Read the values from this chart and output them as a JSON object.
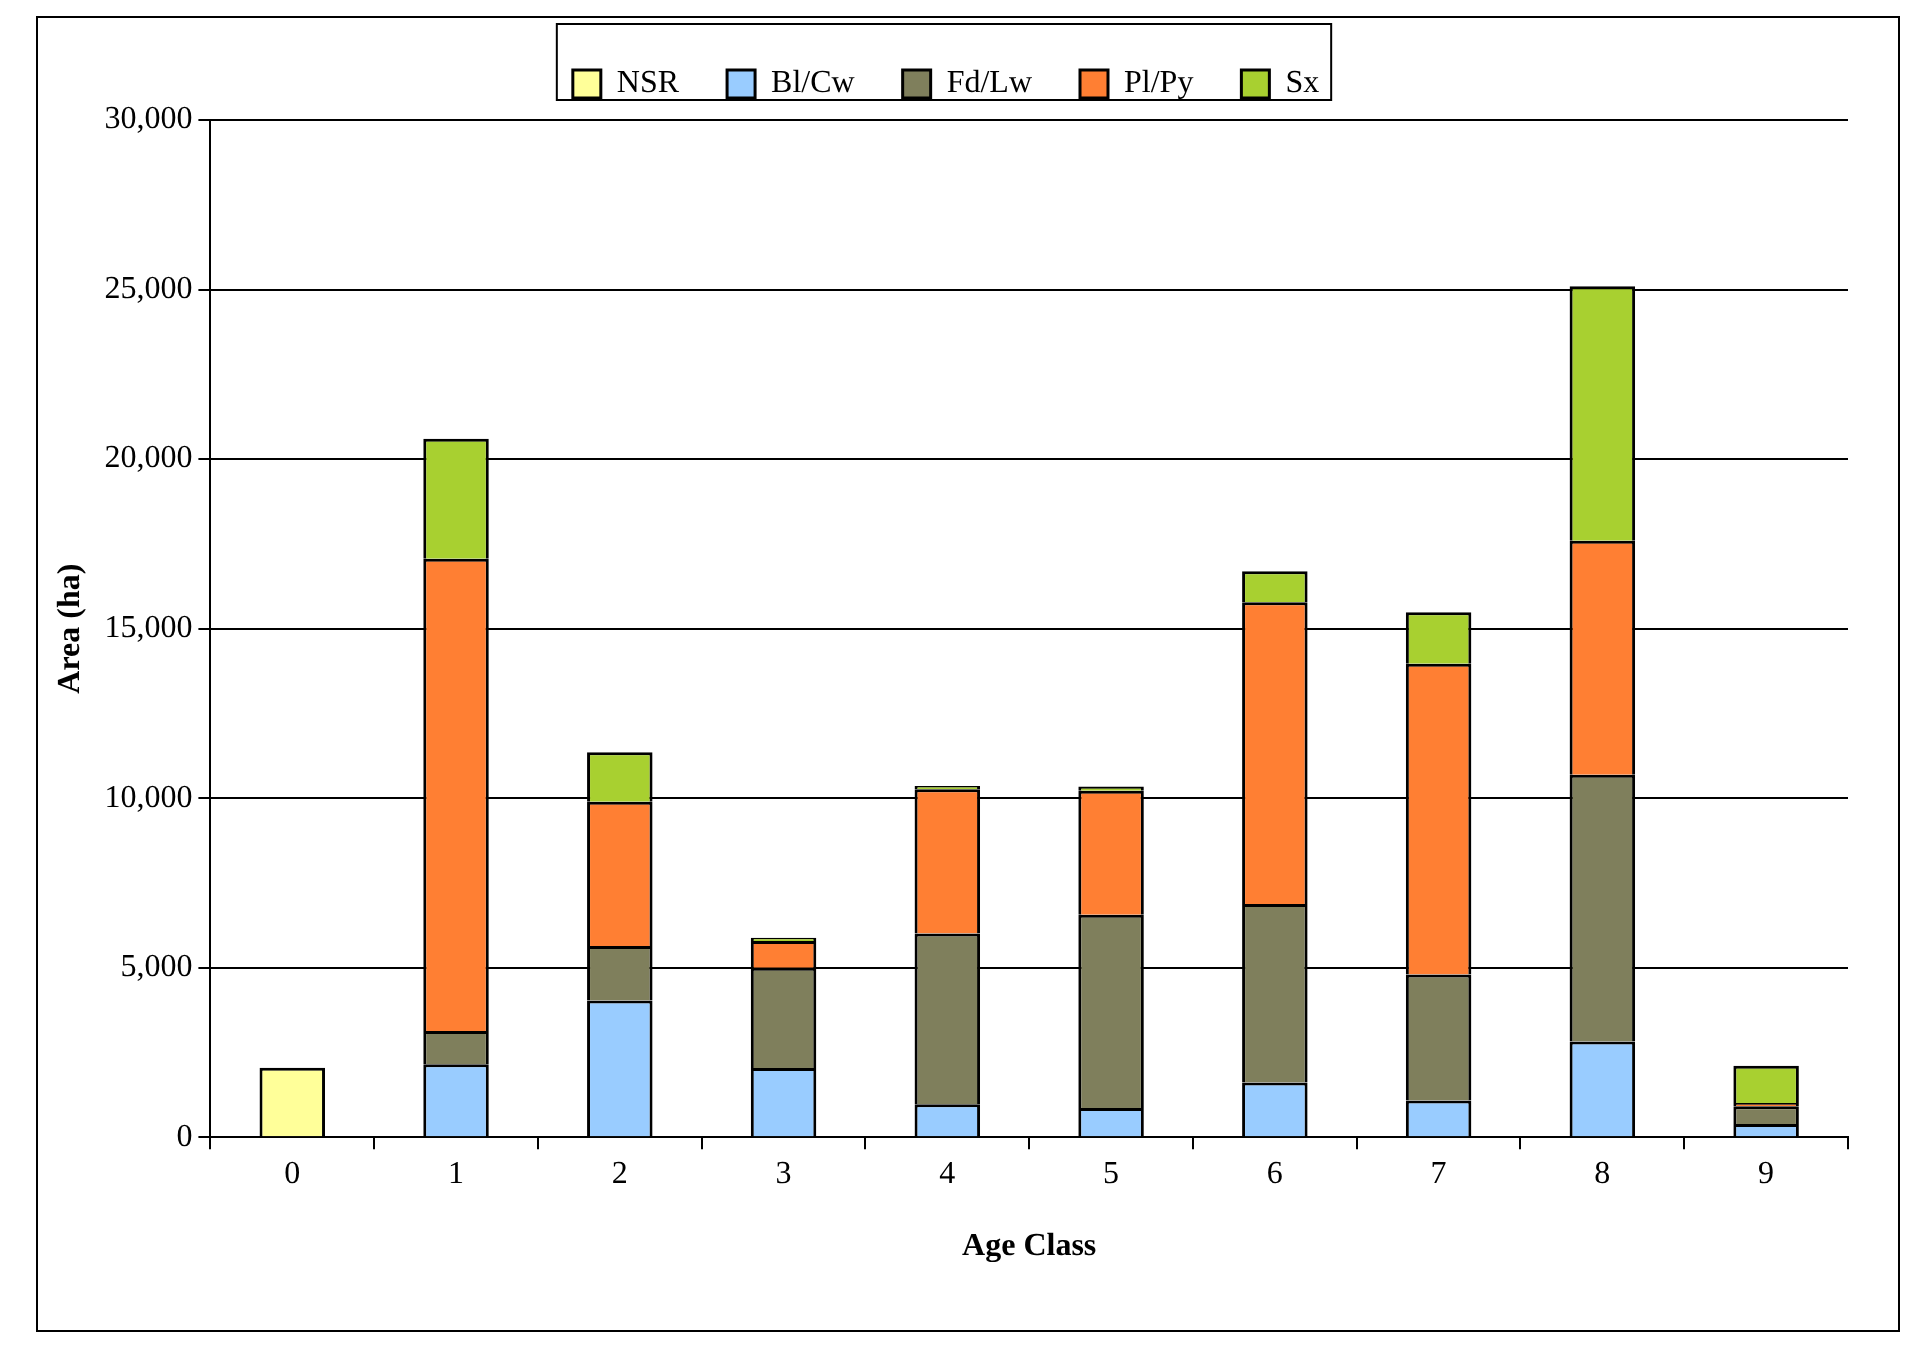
{
  "chart_data": {
    "type": "bar",
    "stacked": true,
    "xlabel": "Age Class",
    "ylabel": "Area (ha)",
    "categories": [
      "0",
      "1",
      "2",
      "3",
      "4",
      "5",
      "6",
      "7",
      "8",
      "9"
    ],
    "series": [
      {
        "name": "NSR",
        "color": "#ffff99",
        "values": [
          2050,
          null,
          null,
          null,
          null,
          null,
          null,
          null,
          null,
          null
        ]
      },
      {
        "name": "Bl/Cw",
        "color": "#99ccff",
        "values": [
          null,
          2150,
          4030,
          2040,
          970,
          860,
          1610,
          1080,
          2820,
          390
        ]
      },
      {
        "name": "Fd/Lw",
        "color": "#7f7f5c",
        "values": [
          null,
          980,
          1610,
          2960,
          5040,
          5700,
          5270,
          3720,
          7870,
          520
        ]
      },
      {
        "name": "Pl/Py",
        "color": "#ff7f33",
        "values": [
          null,
          13930,
          4250,
          790,
          4250,
          3660,
          8900,
          9160,
          6900,
          100
        ]
      },
      {
        "name": "Sx",
        "color": "#a8d030",
        "values": [
          null,
          3540,
          1460,
          90,
          100,
          120,
          910,
          1520,
          7510,
          1100
        ]
      }
    ],
    "ylim": [
      0,
      30000
    ],
    "yticks": [
      {
        "value": 0,
        "label": "0"
      },
      {
        "value": 5000,
        "label": "5,000"
      },
      {
        "value": 10000,
        "label": "10,000"
      },
      {
        "value": 15000,
        "label": "15,000"
      },
      {
        "value": 20000,
        "label": "20,000"
      },
      {
        "value": 25000,
        "label": "25,000"
      },
      {
        "value": 30000,
        "label": "30,000"
      }
    ],
    "grid": "y",
    "legend": "top"
  }
}
